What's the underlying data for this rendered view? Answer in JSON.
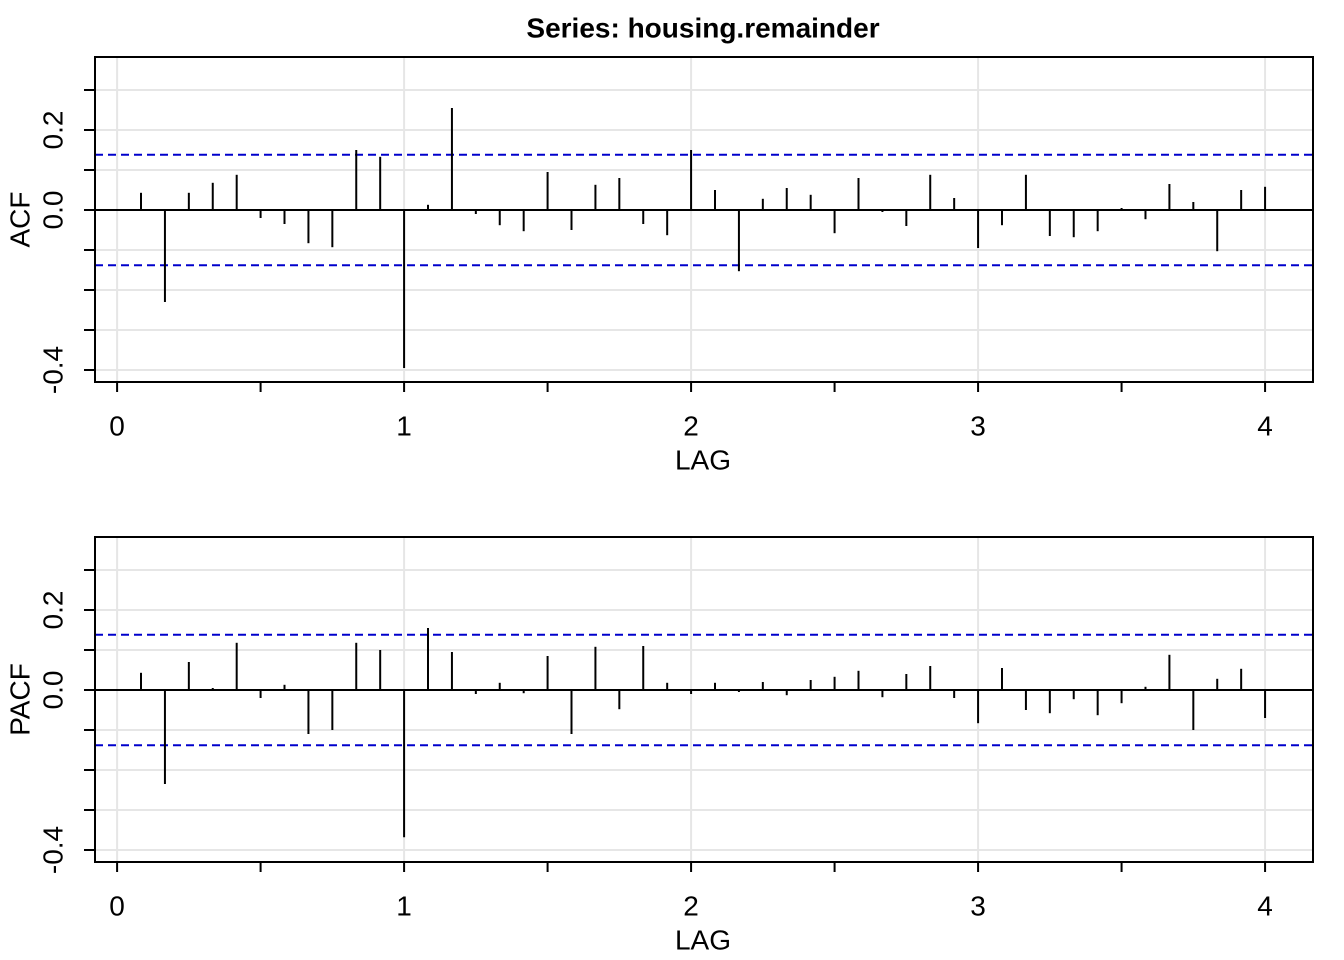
{
  "chart_data": [
    {
      "type": "stem",
      "title": "Series:  housing.remainder",
      "ylabel": "ACF",
      "xlabel": "LAG",
      "color": "#000000",
      "x": [
        0.0833,
        0.1667,
        0.25,
        0.3333,
        0.4167,
        0.5,
        0.5833,
        0.6667,
        0.75,
        0.8333,
        0.9167,
        1,
        1.0833,
        1.1667,
        1.25,
        1.3333,
        1.4167,
        1.5,
        1.5833,
        1.6667,
        1.75,
        1.8333,
        1.9167,
        2,
        2.0833,
        2.1667,
        2.25,
        2.3333,
        2.4167,
        2.5,
        2.5833,
        2.6667,
        2.75,
        2.8333,
        2.9167,
        3,
        3.0833,
        3.1667,
        3.25,
        3.3333,
        3.4167,
        3.5,
        3.5833,
        3.6667,
        3.75,
        3.8333,
        3.9167,
        4
      ],
      "values": [
        0.043,
        -0.23,
        0.043,
        0.068,
        0.088,
        -0.02,
        -0.035,
        -0.083,
        -0.093,
        0.15,
        0.133,
        -0.395,
        0.013,
        0.255,
        -0.01,
        -0.038,
        -0.053,
        0.095,
        -0.05,
        0.063,
        0.08,
        -0.035,
        -0.063,
        0.15,
        0.05,
        -0.153,
        0.028,
        0.055,
        0.038,
        -0.058,
        0.08,
        -0.005,
        -0.04,
        0.088,
        0.03,
        -0.095,
        -0.038,
        0.088,
        -0.065,
        -0.068,
        -0.053,
        0.005,
        -0.023,
        0.065,
        0.02,
        -0.103,
        0.05,
        0.058
      ],
      "ci_lines": [
        0.138,
        -0.138
      ],
      "ci_color": "#0000cc",
      "xlim": [
        -0.077,
        4.167
      ],
      "ylim": [
        -0.43,
        0.3825
      ],
      "xticks": [
        0,
        1,
        2,
        3,
        4
      ],
      "xminor_ticks": [
        0.5,
        1.5,
        2.5,
        3.5
      ],
      "yticks": [
        -0.4,
        {
          "value": 0,
          "label": "0.0"
        },
        0.2
      ],
      "yminor_ticks": [
        -0.3,
        -0.2,
        -0.1,
        0.1,
        0.3
      ],
      "grid": true
    },
    {
      "type": "stem",
      "ylabel": "PACF",
      "xlabel": "LAG",
      "color": "#000000",
      "x": [
        0.0833,
        0.1667,
        0.25,
        0.3333,
        0.4167,
        0.5,
        0.5833,
        0.6667,
        0.75,
        0.8333,
        0.9167,
        1,
        1.0833,
        1.1667,
        1.25,
        1.3333,
        1.4167,
        1.5,
        1.5833,
        1.6667,
        1.75,
        1.8333,
        1.9167,
        2,
        2.0833,
        2.1667,
        2.25,
        2.3333,
        2.4167,
        2.5,
        2.5833,
        2.6667,
        2.75,
        2.8333,
        2.9167,
        3,
        3.0833,
        3.1667,
        3.25,
        3.3333,
        3.4167,
        3.5,
        3.5833,
        3.6667,
        3.75,
        3.8333,
        3.9167,
        4
      ],
      "values": [
        0.043,
        -0.235,
        0.07,
        0.005,
        0.118,
        -0.02,
        0.013,
        -0.11,
        -0.1,
        0.118,
        0.1,
        -0.368,
        0.155,
        0.095,
        -0.01,
        0.018,
        -0.008,
        0.085,
        -0.11,
        0.108,
        -0.048,
        0.11,
        0.018,
        -0.01,
        0.018,
        -0.005,
        0.02,
        -0.013,
        0.025,
        0.033,
        0.048,
        -0.018,
        0.04,
        0.06,
        -0.02,
        -0.083,
        0.055,
        -0.05,
        -0.058,
        -0.023,
        -0.063,
        -0.033,
        0.008,
        0.088,
        -0.1,
        0.028,
        0.053,
        -0.07
      ],
      "ci_lines": [
        0.138,
        -0.138
      ],
      "ci_color": "#0000cc",
      "xlim": [
        -0.077,
        4.167
      ],
      "ylim": [
        -0.43,
        0.3825
      ],
      "xticks": [
        0,
        1,
        2,
        3,
        4
      ],
      "xminor_ticks": [
        0.5,
        1.5,
        2.5,
        3.5
      ],
      "yticks": [
        -0.4,
        {
          "value": 0,
          "label": "0.0"
        },
        0.2
      ],
      "yminor_ticks": [
        -0.3,
        -0.2,
        -0.1,
        0.1,
        0.3
      ],
      "grid": true
    }
  ]
}
